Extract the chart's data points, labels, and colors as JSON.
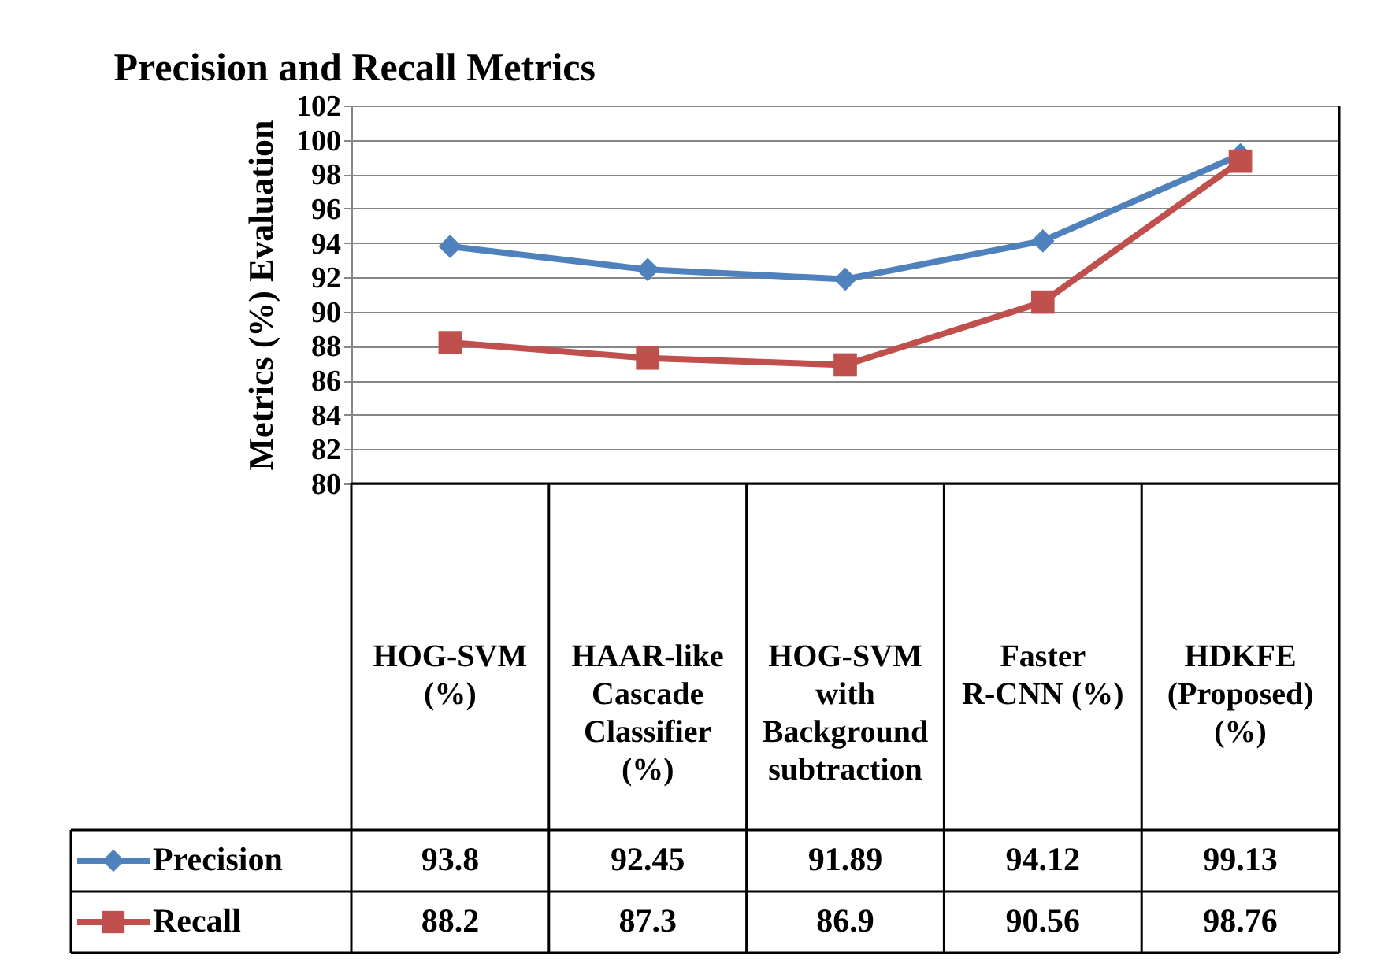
{
  "chart_data": {
    "type": "line",
    "title": "Precision and Recall Metrics",
    "ylabel": "Metrics (%) Evaluation",
    "categories": [
      "HOG-SVM (%)",
      "HAAR-like Cascade Classifier (%)",
      "HOG-SVM with Background subtraction",
      "Faster R-CNN (%)",
      "HDKFE (Proposed) (%)"
    ],
    "series": [
      {
        "name": "Precision",
        "color": "#4f81bd",
        "marker": "diamond",
        "values": [
          93.8,
          92.45,
          91.89,
          94.12,
          99.13
        ]
      },
      {
        "name": "Recall",
        "color": "#c0504d",
        "marker": "square",
        "values": [
          88.2,
          87.3,
          86.9,
          90.56,
          98.76
        ]
      }
    ],
    "ylim": [
      80,
      102
    ],
    "yticks": [
      80,
      82,
      84,
      86,
      88,
      90,
      92,
      94,
      96,
      98,
      100,
      102
    ],
    "grid": "y",
    "legend": "bottom left",
    "data_labels": true
  }
}
